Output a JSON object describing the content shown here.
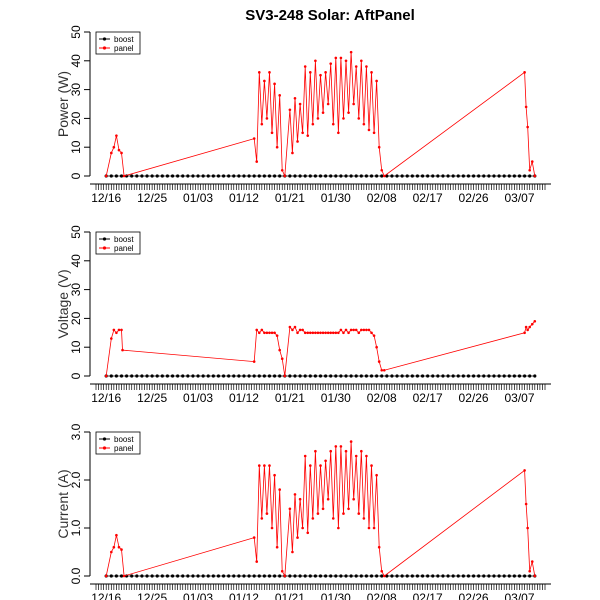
{
  "title": "SV3-248 Solar: AftPanel",
  "colors": {
    "boost": "#000000",
    "panel": "#ff0000"
  },
  "chart_data": [
    {
      "type": "line",
      "ylabel": "Power (W)",
      "ylim": [
        0,
        50
      ],
      "yticks": [
        0,
        10,
        20,
        30,
        40,
        50
      ],
      "xticks": [
        "12/16",
        "12/25",
        "01/03",
        "01/12",
        "01/21",
        "01/30",
        "02/08",
        "02/17",
        "02/26",
        "03/07"
      ],
      "xlim_days": [
        -2,
        86
      ],
      "legend": {
        "position": "top-left",
        "entries": [
          "boost",
          "panel"
        ]
      },
      "series": [
        {
          "name": "boost",
          "x": [
            0,
            1,
            2,
            3,
            4,
            5,
            6,
            7,
            8,
            9,
            10,
            11,
            12,
            13,
            14,
            15,
            16,
            17,
            18,
            19,
            20,
            21,
            22,
            23,
            24,
            25,
            26,
            27,
            28,
            29,
            30,
            31,
            32,
            33,
            34,
            35,
            36,
            37,
            38,
            39,
            40,
            41,
            42,
            43,
            44,
            45,
            46,
            47,
            48,
            49,
            50,
            51,
            52,
            53,
            54,
            55,
            56,
            57,
            58,
            59,
            60,
            61,
            62,
            63,
            64,
            65,
            66,
            67,
            68,
            69,
            70,
            71,
            72,
            73,
            74,
            75,
            76,
            77,
            78,
            79,
            80,
            81,
            82,
            83,
            84
          ],
          "y": [
            0,
            0,
            0,
            0,
            0,
            0,
            0,
            0,
            0,
            0,
            0,
            0,
            0,
            0,
            0,
            0,
            0,
            0,
            0,
            0,
            0,
            0,
            0,
            0,
            0,
            0,
            0,
            0,
            0,
            0,
            0,
            0,
            0,
            0,
            0,
            0,
            0,
            0,
            0,
            0,
            0,
            0,
            0,
            0,
            0,
            0,
            0,
            0,
            0,
            0,
            0,
            0,
            0,
            0,
            0,
            0,
            0,
            0,
            0,
            0,
            0,
            0,
            0,
            0,
            0,
            0,
            0,
            0,
            0,
            0,
            0,
            0,
            0,
            0,
            0,
            0,
            0,
            0,
            0,
            0,
            0,
            0,
            0,
            0,
            0
          ]
        },
        {
          "name": "panel",
          "x": [
            0.0,
            1.0,
            1.5,
            2.0,
            2.5,
            3.0,
            3.5,
            29.0,
            29.5,
            30.0,
            30.5,
            31.0,
            31.5,
            32.0,
            32.5,
            33.0,
            33.5,
            34.0,
            34.5,
            35.0,
            36.0,
            36.5,
            37.0,
            37.5,
            38.0,
            38.5,
            39.0,
            39.5,
            40.0,
            40.5,
            41.0,
            41.5,
            42.0,
            42.5,
            43.0,
            43.5,
            44.0,
            44.5,
            45.0,
            45.5,
            46.0,
            46.5,
            47.0,
            47.5,
            48.0,
            48.5,
            49.0,
            49.5,
            50.0,
            50.5,
            51.0,
            51.5,
            52.0,
            52.5,
            53.0,
            53.5,
            54.0,
            54.5,
            82.0,
            82.3,
            82.6,
            83.0,
            83.5,
            84.0
          ],
          "y": [
            0.0,
            8.0,
            10.0,
            14.0,
            9.0,
            8.0,
            0.0,
            13.0,
            5.0,
            36.0,
            18.0,
            33.0,
            20.0,
            36.0,
            15.0,
            32.0,
            10.0,
            28.0,
            2.0,
            0.0,
            23.0,
            8.0,
            27.0,
            12.0,
            25.0,
            15.0,
            38.0,
            14.0,
            36.0,
            18.0,
            40.0,
            20.0,
            35.0,
            22.0,
            36.0,
            25.0,
            39.0,
            18.0,
            41.0,
            15.0,
            41.0,
            20.0,
            40.0,
            22.0,
            43.0,
            25.0,
            38.0,
            20.0,
            40.0,
            18.0,
            38.0,
            16.0,
            36.0,
            15.0,
            33.0,
            10.0,
            2.0,
            0.0,
            36.0,
            24.0,
            17.0,
            2.0,
            5.0,
            0.0
          ]
        }
      ]
    },
    {
      "type": "line",
      "ylabel": "Voltage (V)",
      "ylim": [
        0,
        50
      ],
      "yticks": [
        0,
        10,
        20,
        30,
        40,
        50
      ],
      "xticks": [
        "12/16",
        "12/25",
        "01/03",
        "01/12",
        "01/21",
        "01/30",
        "02/08",
        "02/17",
        "02/26",
        "03/07"
      ],
      "xlim_days": [
        -2,
        86
      ],
      "legend": {
        "position": "top-left",
        "entries": [
          "boost",
          "panel"
        ]
      },
      "series": [
        {
          "name": "boost",
          "x": [
            0,
            1,
            2,
            3,
            4,
            5,
            6,
            7,
            8,
            9,
            10,
            11,
            12,
            13,
            14,
            15,
            16,
            17,
            18,
            19,
            20,
            21,
            22,
            23,
            24,
            25,
            26,
            27,
            28,
            29,
            30,
            31,
            32,
            33,
            34,
            35,
            36,
            37,
            38,
            39,
            40,
            41,
            42,
            43,
            44,
            45,
            46,
            47,
            48,
            49,
            50,
            51,
            52,
            53,
            54,
            55,
            56,
            57,
            58,
            59,
            60,
            61,
            62,
            63,
            64,
            65,
            66,
            67,
            68,
            69,
            70,
            71,
            72,
            73,
            74,
            75,
            76,
            77,
            78,
            79,
            80,
            81,
            82,
            83,
            84
          ],
          "y": [
            0,
            0,
            0,
            0,
            0,
            0,
            0,
            0,
            0,
            0,
            0,
            0,
            0,
            0,
            0,
            0,
            0,
            0,
            0,
            0,
            0,
            0,
            0,
            0,
            0,
            0,
            0,
            0,
            0,
            0,
            0,
            0,
            0,
            0,
            0,
            0,
            0,
            0,
            0,
            0,
            0,
            0,
            0,
            0,
            0,
            0,
            0,
            0,
            0,
            0,
            0,
            0,
            0,
            0,
            0,
            0,
            0,
            0,
            0,
            0,
            0,
            0,
            0,
            0,
            0,
            0,
            0,
            0,
            0,
            0,
            0,
            0,
            0,
            0,
            0,
            0,
            0,
            0,
            0,
            0,
            0,
            0,
            0,
            0,
            0
          ]
        },
        {
          "name": "panel",
          "x": [
            0.0,
            1.0,
            1.5,
            2.0,
            2.5,
            3.0,
            3.2,
            29.0,
            29.5,
            30.0,
            30.5,
            31.0,
            31.5,
            32.0,
            32.5,
            33.0,
            33.5,
            34.0,
            34.5,
            35.0,
            36.0,
            36.5,
            37.0,
            37.5,
            38.0,
            38.5,
            39.0,
            39.5,
            40.0,
            40.5,
            41.0,
            41.5,
            42.0,
            42.5,
            43.0,
            43.5,
            44.0,
            44.5,
            45.0,
            45.5,
            46.0,
            46.5,
            47.0,
            47.5,
            48.0,
            48.5,
            49.0,
            49.5,
            50.0,
            50.5,
            51.0,
            51.5,
            52.0,
            52.5,
            53.0,
            53.5,
            54.0,
            54.5,
            82.0,
            82.3,
            82.6,
            83.0,
            83.5,
            84.0
          ],
          "y": [
            0.0,
            13.0,
            16.0,
            15.0,
            16.0,
            16.0,
            9.0,
            5.0,
            16.0,
            15.0,
            16.0,
            15.0,
            15.0,
            15.0,
            15.0,
            15.0,
            14.0,
            9.0,
            6.0,
            0.0,
            17.0,
            16.0,
            17.0,
            15.0,
            16.0,
            16.0,
            15.0,
            15.0,
            15.0,
            15.0,
            15.0,
            15.0,
            15.0,
            15.0,
            15.0,
            15.0,
            15.0,
            15.0,
            15.0,
            15.0,
            16.0,
            15.0,
            16.0,
            15.0,
            16.0,
            16.0,
            16.0,
            15.0,
            16.0,
            16.0,
            16.0,
            16.0,
            15.0,
            14.0,
            10.0,
            5.0,
            2.0,
            2.0,
            15.0,
            17.0,
            16.0,
            17.0,
            18.0,
            19.0
          ]
        }
      ]
    },
    {
      "type": "line",
      "ylabel": "Current (A)",
      "ylim": [
        0,
        3.0
      ],
      "yticks": [
        0.0,
        1.0,
        2.0,
        3.0
      ],
      "xticks": [
        "12/16",
        "12/25",
        "01/03",
        "01/12",
        "01/21",
        "01/30",
        "02/08",
        "02/17",
        "02/26",
        "03/07"
      ],
      "xlim_days": [
        -2,
        86
      ],
      "legend": {
        "position": "top-left",
        "entries": [
          "boost",
          "panel"
        ]
      },
      "series": [
        {
          "name": "boost",
          "x": [
            0,
            1,
            2,
            3,
            4,
            5,
            6,
            7,
            8,
            9,
            10,
            11,
            12,
            13,
            14,
            15,
            16,
            17,
            18,
            19,
            20,
            21,
            22,
            23,
            24,
            25,
            26,
            27,
            28,
            29,
            30,
            31,
            32,
            33,
            34,
            35,
            36,
            37,
            38,
            39,
            40,
            41,
            42,
            43,
            44,
            45,
            46,
            47,
            48,
            49,
            50,
            51,
            52,
            53,
            54,
            55,
            56,
            57,
            58,
            59,
            60,
            61,
            62,
            63,
            64,
            65,
            66,
            67,
            68,
            69,
            70,
            71,
            72,
            73,
            74,
            75,
            76,
            77,
            78,
            79,
            80,
            81,
            82,
            83,
            84
          ],
          "y": [
            0,
            0,
            0,
            0,
            0,
            0,
            0,
            0,
            0,
            0,
            0,
            0,
            0,
            0,
            0,
            0,
            0,
            0,
            0,
            0,
            0,
            0,
            0,
            0,
            0,
            0,
            0,
            0,
            0,
            0,
            0,
            0,
            0,
            0,
            0,
            0,
            0,
            0,
            0,
            0,
            0,
            0,
            0,
            0,
            0,
            0,
            0,
            0,
            0,
            0,
            0,
            0,
            0,
            0,
            0,
            0,
            0,
            0,
            0,
            0,
            0,
            0,
            0,
            0,
            0,
            0,
            0,
            0,
            0,
            0,
            0,
            0,
            0,
            0,
            0,
            0,
            0,
            0,
            0,
            0,
            0,
            0,
            0,
            0,
            0
          ]
        },
        {
          "name": "panel",
          "x": [
            0.0,
            1.0,
            1.5,
            2.0,
            2.5,
            3.0,
            3.5,
            29.0,
            29.5,
            30.0,
            30.5,
            31.0,
            31.5,
            32.0,
            32.5,
            33.0,
            33.5,
            34.0,
            34.5,
            35.0,
            36.0,
            36.5,
            37.0,
            37.5,
            38.0,
            38.5,
            39.0,
            39.5,
            40.0,
            40.5,
            41.0,
            41.5,
            42.0,
            42.5,
            43.0,
            43.5,
            44.0,
            44.5,
            45.0,
            45.5,
            46.0,
            46.5,
            47.0,
            47.5,
            48.0,
            48.5,
            49.0,
            49.5,
            50.0,
            50.5,
            51.0,
            51.5,
            52.0,
            52.5,
            53.0,
            53.5,
            54.0,
            54.5,
            82.0,
            82.3,
            82.6,
            83.0,
            83.5,
            84.0
          ],
          "y": [
            0.0,
            0.5,
            0.6,
            0.85,
            0.6,
            0.55,
            0.0,
            0.8,
            0.3,
            2.3,
            1.2,
            2.3,
            1.3,
            2.3,
            1.0,
            2.1,
            0.6,
            1.8,
            0.1,
            0.0,
            1.4,
            0.5,
            1.7,
            0.8,
            1.6,
            1.0,
            2.5,
            0.9,
            2.3,
            1.2,
            2.6,
            1.3,
            2.3,
            1.4,
            2.4,
            1.6,
            2.6,
            1.2,
            2.7,
            1.0,
            2.7,
            1.3,
            2.6,
            1.4,
            2.8,
            1.6,
            2.5,
            1.3,
            2.6,
            1.2,
            2.5,
            1.0,
            2.3,
            1.0,
            2.1,
            0.6,
            0.1,
            0.0,
            2.2,
            1.5,
            1.0,
            0.1,
            0.3,
            0.0
          ]
        }
      ]
    }
  ]
}
